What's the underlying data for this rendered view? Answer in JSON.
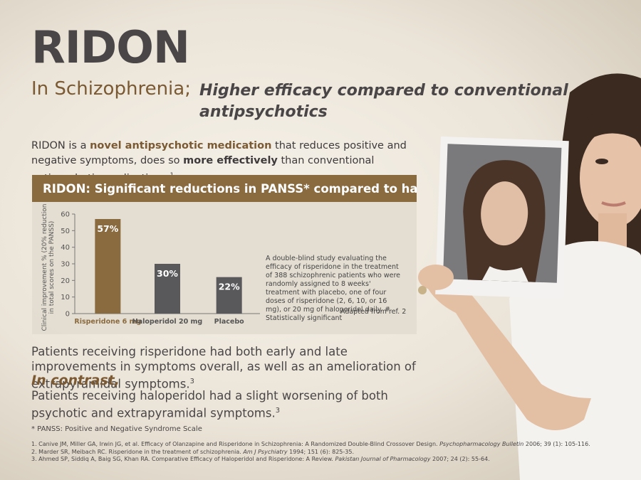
{
  "header": {
    "title": "RIDON",
    "subtitle_left": "In Schizophrenia;",
    "subtitle_right": [
      "Higher efficacy compared to conventional",
      "antipsychotics"
    ]
  },
  "intro": [
    "RIDON is a ",
    "novel antipsychotic medication",
    " that reduces positive and negative symptoms, does so ",
    "more effectively",
    " than conventional antipsychotic medications.",
    "1"
  ],
  "chart_data": {
    "type": "bar",
    "title": "RIDON: Significant reductions in PANSS* compared to haloperidol",
    "y_label": [
      "Clinical improvement % (20% reduction",
      "in total scores on the PANSS)"
    ],
    "categories": [
      "Risperidone 6 mg",
      "Haloperidol 20 mg",
      "Placebo"
    ],
    "values": [
      57,
      30,
      22
    ],
    "value_labels": [
      "57%",
      "30%",
      "22%"
    ],
    "colors": [
      "#8a6a3f",
      "#59585b",
      "#59585b"
    ],
    "ylim": [
      0,
      60
    ],
    "yticks": [
      0,
      10,
      20,
      30,
      40,
      50,
      60
    ],
    "note": "A double-blind study evaluating the efficacy of risperidone in the treatment of 388 schizophrenic patients who were randomly assigned to 8 weeks' treatment with placebo, one of four doses of risperidone (2, 6, 10, or 16 mg), or 20 mg of haloperidol daily. # Statistically significant",
    "source": "Adapted from ref. 2"
  },
  "results": [
    "Patients receiving risperidone had both early and late improvements in symptoms overall, as well as an amelioration of extrapyramidal symptoms.",
    "3"
  ],
  "contrast_heading": "In contrast,",
  "contrast": [
    "Patients receiving haloperidol had a slight worsening of both psychotic and extrapyramidal symptoms.",
    "3"
  ],
  "abbreviation": "* PANSS: Positive and Negative Syndrome Scale",
  "references": [
    [
      "1. Canive JM, Miller GA, Irwin JG, et al. Efficacy of Olanzapine and Risperidone in Schizophrenia: A Randomized Double-Blind Crossover Design. ",
      "Psychopharmacology Bulletin",
      " 2006; 39 (1): 105-116."
    ],
    [
      "2. Marder SR, Meibach RC. Risperidone in the treatment of schizophrenia. ",
      "Am J Psychiatry",
      " 1994; 151 (6): 825-35."
    ],
    [
      "3. Ahmed SP, Siddiq A, Baig SG, Khan RA. Comparative Efficacy of Haloperidol and Risperidone: A Review. ",
      "Pakistan Journal of Pharmacology",
      " 2007; 24 (2): 55-64."
    ]
  ]
}
